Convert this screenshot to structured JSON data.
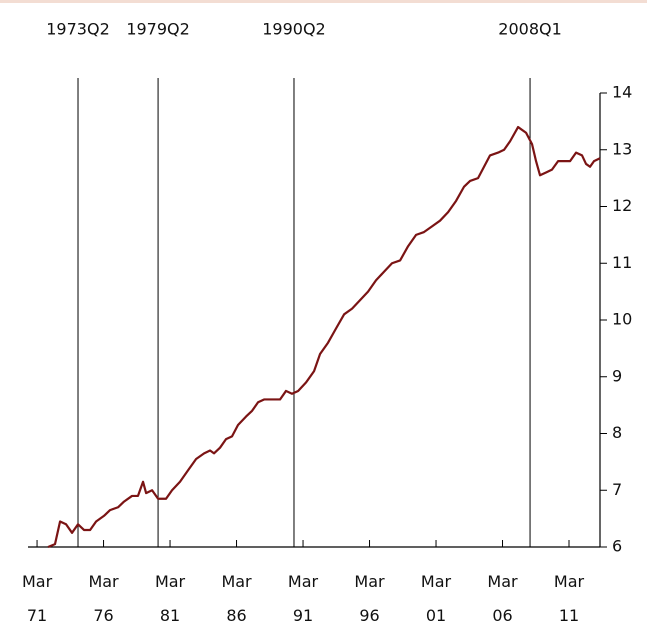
{
  "chart_data": {
    "type": "line",
    "x": [
      1972.0,
      1972.52,
      1972.9,
      1973.35,
      1973.8,
      1974.25,
      1974.7,
      1975.16,
      1975.61,
      1976.21,
      1976.66,
      1977.26,
      1977.71,
      1978.31,
      1978.76,
      1979.14,
      1979.37,
      1979.82,
      1980.27,
      1980.87,
      1981.32,
      1981.92,
      1982.52,
      1983.13,
      1983.73,
      1984.18,
      1984.48,
      1984.93,
      1985.38,
      1985.83,
      1986.28,
      1986.89,
      1987.34,
      1987.79,
      1988.24,
      1988.69,
      1989.44,
      1989.89,
      1990.34,
      1990.8,
      1991.4,
      1992.0,
      1992.45,
      1993.05,
      1993.65,
      1994.26,
      1994.86,
      1995.46,
      1996.06,
      1996.66,
      1997.26,
      1997.86,
      1998.47,
      1999.07,
      1999.67,
      2000.27,
      2000.87,
      2001.47,
      2002.08,
      2002.68,
      2003.28,
      2003.73,
      2004.33,
      2004.78,
      2005.23,
      2005.84,
      2006.29,
      2006.74,
      2007.34,
      2007.94,
      2008.39,
      2008.69,
      2008.99,
      2009.44,
      2009.89,
      2010.35,
      2010.8,
      2011.25,
      2011.7,
      2012.15,
      2012.45,
      2012.75,
      2013.05,
      2013.5
    ],
    "series": [
      {
        "color": "#7b1414",
        "values": [
          6.0,
          6.05,
          6.45,
          6.4,
          6.25,
          6.4,
          6.3,
          6.3,
          6.45,
          6.55,
          6.65,
          6.7,
          6.8,
          6.9,
          6.9,
          7.15,
          6.95,
          7.0,
          6.85,
          6.85,
          7.0,
          7.15,
          7.35,
          7.55,
          7.65,
          7.7,
          7.65,
          7.75,
          7.9,
          7.95,
          8.15,
          8.3,
          8.4,
          8.55,
          8.6,
          8.6,
          8.6,
          8.75,
          8.7,
          8.75,
          8.9,
          9.1,
          9.4,
          9.6,
          9.85,
          10.1,
          10.2,
          10.35,
          10.5,
          10.7,
          10.85,
          11.0,
          11.05,
          11.3,
          11.5,
          11.55,
          11.65,
          11.75,
          11.9,
          12.1,
          12.35,
          12.45,
          12.5,
          12.7,
          12.9,
          12.95,
          13.0,
          13.15,
          13.4,
          13.3,
          13.1,
          12.8,
          12.55,
          12.6,
          12.65,
          12.8,
          12.8,
          12.8,
          12.95,
          12.9,
          12.75,
          12.7,
          12.8,
          12.85
        ]
      }
    ],
    "xlim": [
      1970.64,
      2013.5
    ],
    "xticks": [
      {
        "value": 1971.17,
        "label": "Mar 71"
      },
      {
        "value": 1976.17,
        "label": "Mar 76"
      },
      {
        "value": 1981.17,
        "label": "Mar 81"
      },
      {
        "value": 1986.17,
        "label": "Mar 86"
      },
      {
        "value": 1991.17,
        "label": "Mar 91"
      },
      {
        "value": 1996.17,
        "label": "Mar 96"
      },
      {
        "value": 2001.17,
        "label": "Mar 01"
      },
      {
        "value": 2006.17,
        "label": "Mar 06"
      },
      {
        "value": 2011.17,
        "label": "Mar 11"
      }
    ],
    "ylim": [
      6,
      14
    ],
    "yticks": [
      6,
      7,
      8,
      9,
      10,
      11,
      12,
      13,
      14
    ],
    "annotations": [
      {
        "x": 1974.25,
        "text": "1973Q2"
      },
      {
        "x": 1980.27,
        "text": "1979Q2"
      },
      {
        "x": 1990.49,
        "text": "1990Q2"
      },
      {
        "x": 2008.24,
        "text": "2008Q1"
      }
    ]
  }
}
